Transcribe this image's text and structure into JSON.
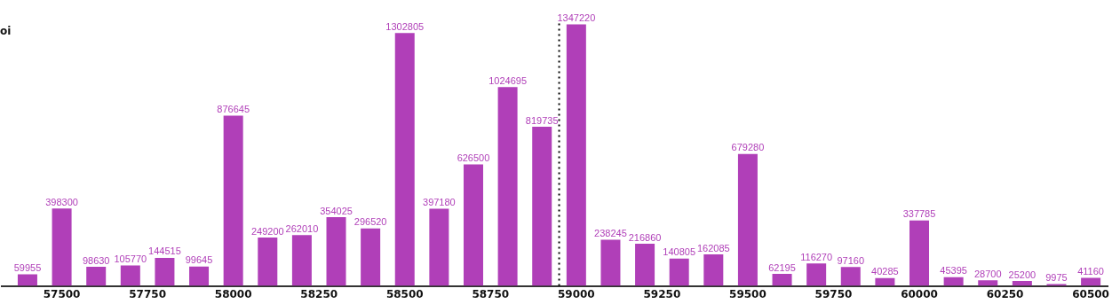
{
  "chart_data": {
    "type": "bar",
    "ylabel": "oi",
    "x": [
      57400,
      57500,
      57600,
      57700,
      57800,
      57900,
      58000,
      58100,
      58200,
      58300,
      58400,
      58500,
      58600,
      58700,
      58800,
      58900,
      59000,
      59100,
      59200,
      59300,
      59400,
      59500,
      59600,
      59700,
      59800,
      59900,
      60000,
      60100,
      60200,
      60300,
      60400,
      60500
    ],
    "series": [
      {
        "color": "#b03fb8",
        "values": [
          59955,
          398300,
          98630,
          105770,
          144515,
          99645,
          876645,
          249200,
          262010,
          354025,
          296520,
          1302805,
          397180,
          626500,
          1024695,
          819735,
          1347220,
          238245,
          216860,
          140805,
          162085,
          679280,
          62195,
          116270,
          97160,
          40285,
          337785,
          45395,
          28700,
          25200,
          9975,
          41160
        ]
      }
    ],
    "xlim": [
      57325,
      60550
    ],
    "xticks": [
      57500,
      57750,
      58000,
      58250,
      58500,
      58750,
      59000,
      59250,
      59500,
      59750,
      60000,
      60250,
      60500
    ],
    "tick_labels": "x",
    "data_labels": true,
    "legend": false,
    "ref_lines": [
      {
        "axis": "x",
        "value": 58950,
        "color": "#000000",
        "line_style": "dotted"
      }
    ]
  }
}
